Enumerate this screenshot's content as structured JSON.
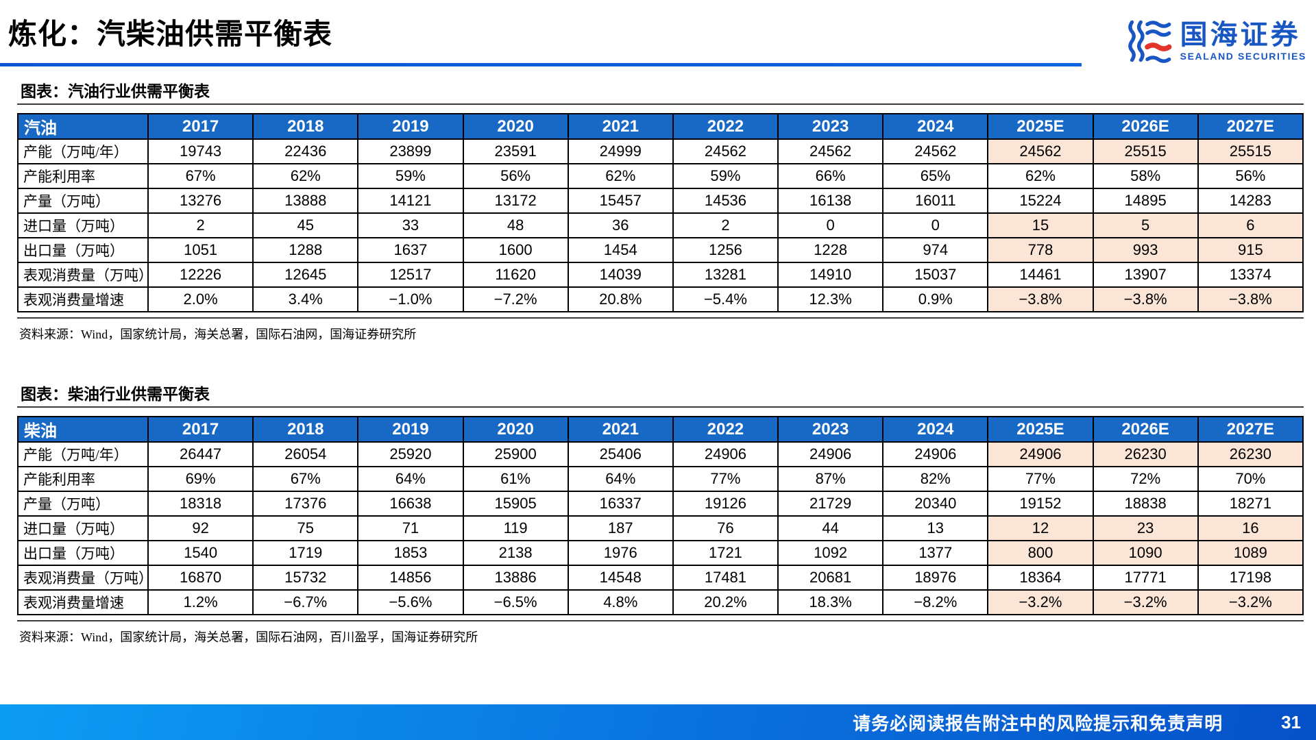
{
  "page": {
    "title": "炼化：汽柴油供需平衡表",
    "footer": {
      "disclaimer": "请务必阅读报告附注中的风险提示和免责声明",
      "page_number": "31"
    }
  },
  "logo": {
    "cn": "国海证券",
    "en": "SEALAND SECURITIES"
  },
  "colors": {
    "header_blue": "#1868c6",
    "forecast_highlight": "#fbe5d6",
    "accent_rule_blue": "#0a55d6",
    "footer_gradient_start": "#0c9cf4",
    "footer_gradient_end": "#0550c8",
    "logo_blue": "#1857c3",
    "logo_red": "#e2342b"
  },
  "tables": [
    {
      "caption": "图表：汽油行业供需平衡表",
      "source": "资料来源：Wind，国家统计局，海关总署，国际石油网，国海证券研究所",
      "corner": "汽油",
      "years": [
        "2017",
        "2018",
        "2019",
        "2020",
        "2021",
        "2022",
        "2023",
        "2024",
        "2025E",
        "2026E",
        "2027E"
      ],
      "forecast_start_index": 8,
      "rows": [
        {
          "label": "产能（万吨/年）",
          "highlight_forecast": true,
          "values": [
            "19743",
            "22436",
            "23899",
            "23591",
            "24999",
            "24562",
            "24562",
            "24562",
            "24562",
            "25515",
            "25515"
          ]
        },
        {
          "label": "产能利用率",
          "highlight_forecast": false,
          "values": [
            "67%",
            "62%",
            "59%",
            "56%",
            "62%",
            "59%",
            "66%",
            "65%",
            "62%",
            "58%",
            "56%"
          ]
        },
        {
          "label": "产量（万吨）",
          "highlight_forecast": false,
          "values": [
            "13276",
            "13888",
            "14121",
            "13172",
            "15457",
            "14536",
            "16138",
            "16011",
            "15224",
            "14895",
            "14283"
          ]
        },
        {
          "label": "进口量（万吨）",
          "highlight_forecast": true,
          "values": [
            "2",
            "45",
            "33",
            "48",
            "36",
            "2",
            "0",
            "0",
            "15",
            "5",
            "6"
          ]
        },
        {
          "label": "出口量（万吨）",
          "highlight_forecast": true,
          "values": [
            "1051",
            "1288",
            "1637",
            "1600",
            "1454",
            "1256",
            "1228",
            "974",
            "778",
            "993",
            "915"
          ]
        },
        {
          "label": "表观消费量（万吨）",
          "highlight_forecast": false,
          "values": [
            "12226",
            "12645",
            "12517",
            "11620",
            "14039",
            "13281",
            "14910",
            "15037",
            "14461",
            "13907",
            "13374"
          ]
        },
        {
          "label": "表观消费量增速",
          "highlight_forecast": true,
          "values": [
            "2.0%",
            "3.4%",
            "−1.0%",
            "−7.2%",
            "20.8%",
            "−5.4%",
            "12.3%",
            "0.9%",
            "−3.8%",
            "−3.8%",
            "−3.8%"
          ]
        }
      ]
    },
    {
      "caption": "图表：柴油行业供需平衡表",
      "source": "资料来源：Wind，国家统计局，海关总署，国际石油网，百川盈孚，国海证券研究所",
      "corner": "柴油",
      "years": [
        "2017",
        "2018",
        "2019",
        "2020",
        "2021",
        "2022",
        "2023",
        "2024",
        "2025E",
        "2026E",
        "2027E"
      ],
      "forecast_start_index": 8,
      "rows": [
        {
          "label": "产能（万吨/年）",
          "highlight_forecast": true,
          "values": [
            "26447",
            "26054",
            "25920",
            "25900",
            "25406",
            "24906",
            "24906",
            "24906",
            "24906",
            "26230",
            "26230"
          ]
        },
        {
          "label": "产能利用率",
          "highlight_forecast": false,
          "values": [
            "69%",
            "67%",
            "64%",
            "61%",
            "64%",
            "77%",
            "87%",
            "82%",
            "77%",
            "72%",
            "70%"
          ]
        },
        {
          "label": "产量（万吨）",
          "highlight_forecast": false,
          "values": [
            "18318",
            "17376",
            "16638",
            "15905",
            "16337",
            "19126",
            "21729",
            "20340",
            "19152",
            "18838",
            "18271"
          ]
        },
        {
          "label": "进口量（万吨）",
          "highlight_forecast": true,
          "values": [
            "92",
            "75",
            "71",
            "119",
            "187",
            "76",
            "44",
            "13",
            "12",
            "23",
            "16"
          ]
        },
        {
          "label": "出口量（万吨）",
          "highlight_forecast": true,
          "values": [
            "1540",
            "1719",
            "1853",
            "2138",
            "1976",
            "1721",
            "1092",
            "1377",
            "800",
            "1090",
            "1089"
          ]
        },
        {
          "label": "表观消费量（万吨）",
          "highlight_forecast": false,
          "values": [
            "16870",
            "15732",
            "14856",
            "13886",
            "14548",
            "17481",
            "20681",
            "18976",
            "18364",
            "17771",
            "17198"
          ]
        },
        {
          "label": "表观消费量增速",
          "highlight_forecast": true,
          "values": [
            "1.2%",
            "−6.7%",
            "−5.6%",
            "−6.5%",
            "4.8%",
            "20.2%",
            "18.3%",
            "−8.2%",
            "−3.2%",
            "−3.2%",
            "−3.2%"
          ]
        }
      ]
    }
  ]
}
